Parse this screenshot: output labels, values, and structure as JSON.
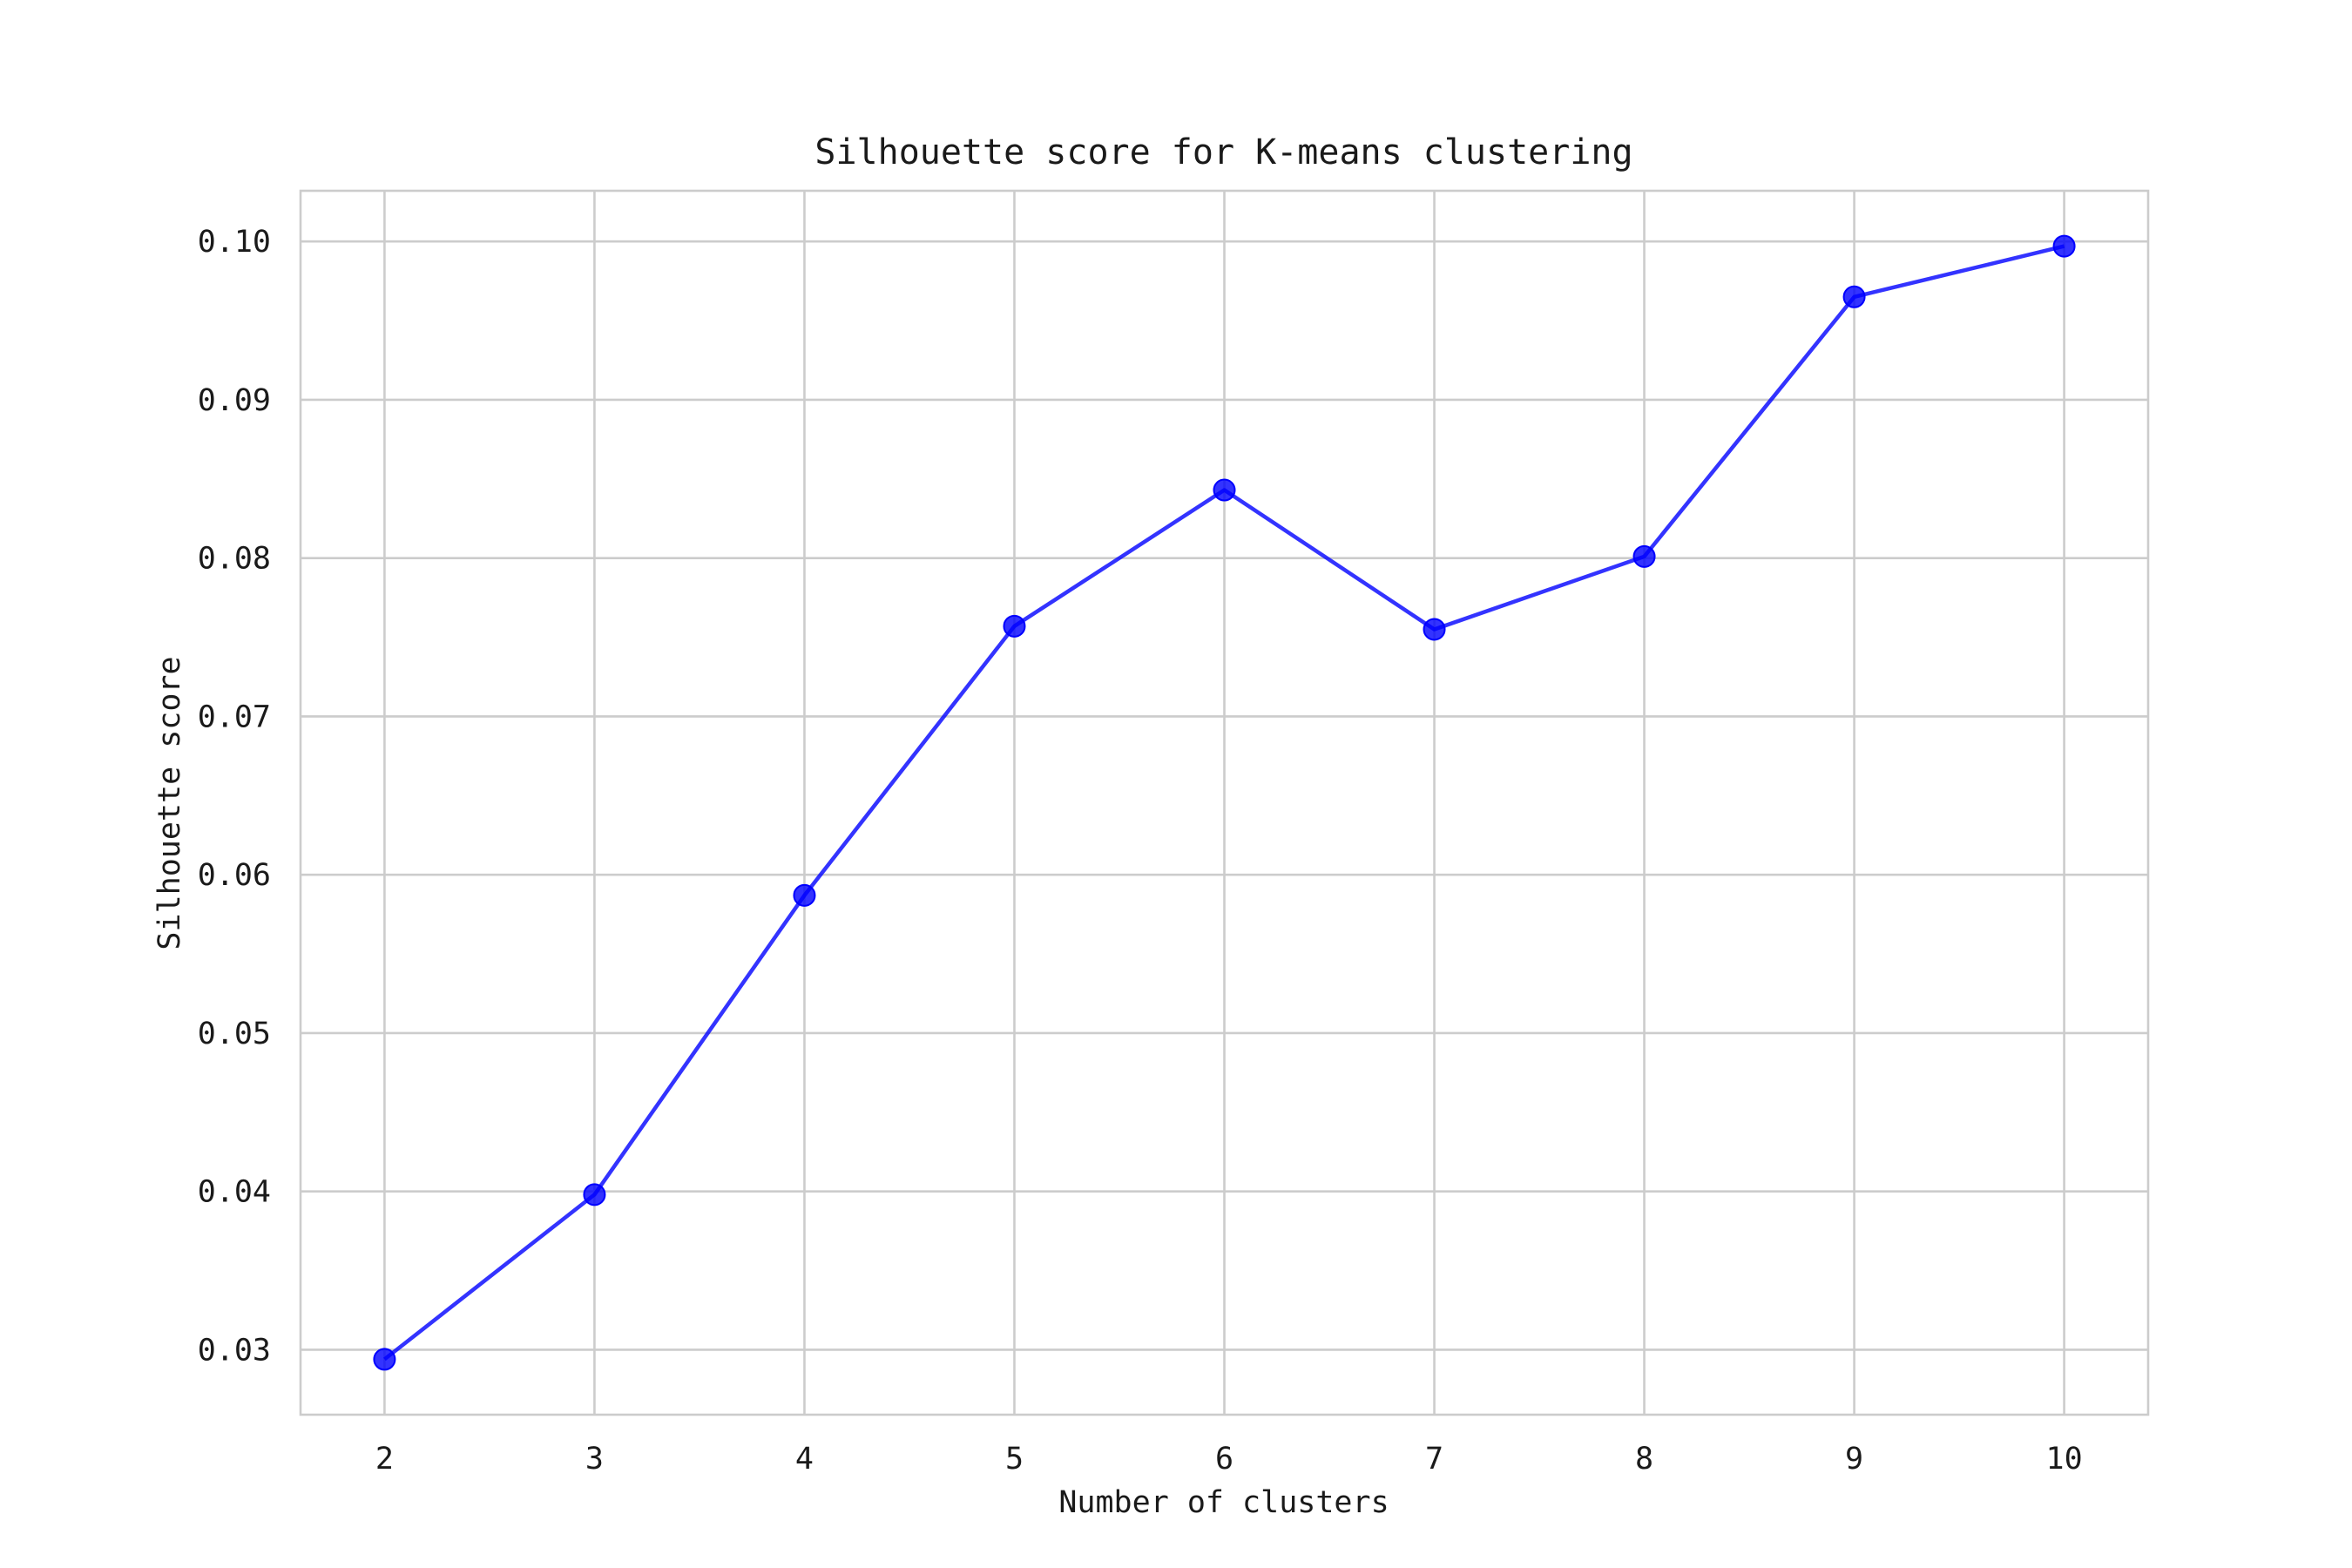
{
  "chart_data": {
    "type": "line",
    "title": "Silhouette score for K-means clustering",
    "xlabel": "Number of clusters",
    "ylabel": "Silhouette score",
    "x": [
      2,
      3,
      4,
      5,
      6,
      7,
      8,
      9,
      10
    ],
    "xticks": [
      "2",
      "3",
      "4",
      "5",
      "6",
      "7",
      "8",
      "9",
      "10"
    ],
    "yticks": [
      "0.03",
      "0.04",
      "0.05",
      "0.06",
      "0.07",
      "0.08",
      "0.09",
      "0.10"
    ],
    "xlim": [
      1.6,
      10.4
    ],
    "ylim": [
      0.0259,
      0.1032
    ],
    "grid": true,
    "series": [
      {
        "values": [
          0.0294,
          0.0398,
          0.0587,
          0.0757,
          0.0843,
          0.0755,
          0.0801,
          0.0965,
          0.0997
        ],
        "color": "#0000ff",
        "marker": "circle"
      }
    ]
  }
}
